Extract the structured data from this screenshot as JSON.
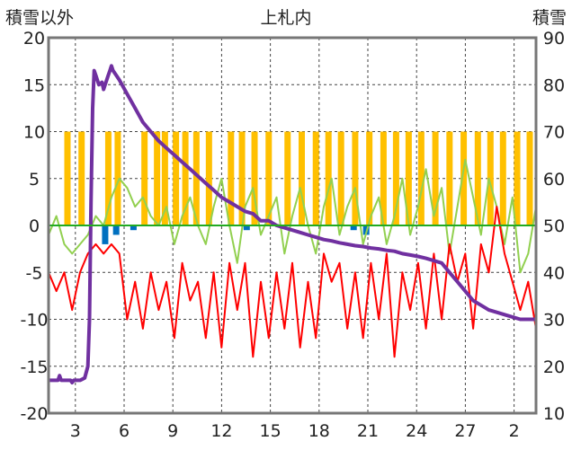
{
  "chart_data": {
    "type": "line",
    "title": "上札内",
    "ylabel_left": "積雪以外",
    "ylabel_right": "積雪",
    "x_tick_labels": [
      "3",
      "6",
      "9",
      "12",
      "15",
      "18",
      "21",
      "24",
      "27",
      "2"
    ],
    "y_left": {
      "range": [
        -20,
        20
      ],
      "ticks": [
        -20,
        -15,
        -10,
        -5,
        0,
        5,
        10,
        15,
        20
      ]
    },
    "y_right": {
      "range": [
        10,
        90
      ],
      "ticks": [
        10,
        20,
        30,
        40,
        50,
        60,
        70,
        80,
        90
      ]
    },
    "grid": true,
    "x_range": [
      0,
      31
    ],
    "colors": {
      "temp": "#ff0000",
      "humidity": "#92d050",
      "snow_depth": "#7030a0",
      "sun_bar": "#ffc000",
      "precip_bar": "#0070c0"
    },
    "series": [
      {
        "key": "snow_depth",
        "axis": "right",
        "points": [
          [
            0,
            17
          ],
          [
            0.6,
            17
          ],
          [
            0.7,
            18
          ],
          [
            0.8,
            17
          ],
          [
            1.4,
            17
          ],
          [
            1.5,
            16.5
          ],
          [
            1.6,
            17
          ],
          [
            2.0,
            17
          ],
          [
            2.3,
            17.5
          ],
          [
            2.5,
            20
          ],
          [
            2.6,
            30
          ],
          [
            2.7,
            55
          ],
          [
            2.8,
            75
          ],
          [
            2.9,
            83
          ],
          [
            3.0,
            82
          ],
          [
            3.1,
            81
          ],
          [
            3.2,
            80
          ],
          [
            3.4,
            80.5
          ],
          [
            3.5,
            79
          ],
          [
            3.6,
            80
          ],
          [
            3.8,
            82
          ],
          [
            3.9,
            83
          ],
          [
            4.0,
            84
          ],
          [
            4.1,
            83
          ],
          [
            4.3,
            82
          ],
          [
            4.5,
            81
          ],
          [
            5,
            78
          ],
          [
            5.5,
            75
          ],
          [
            6,
            72
          ],
          [
            6.5,
            70
          ],
          [
            7,
            68
          ],
          [
            7.5,
            66.5
          ],
          [
            8,
            65
          ],
          [
            8.5,
            63.5
          ],
          [
            9,
            62
          ],
          [
            9.5,
            60.5
          ],
          [
            10,
            59
          ],
          [
            10.5,
            57.5
          ],
          [
            11,
            56
          ],
          [
            11.5,
            55
          ],
          [
            12,
            54
          ],
          [
            12.5,
            53
          ],
          [
            13,
            52.5
          ],
          [
            13.5,
            51
          ],
          [
            14,
            51
          ],
          [
            14.5,
            50
          ],
          [
            15,
            49.5
          ],
          [
            15.5,
            49
          ],
          [
            16,
            48.5
          ],
          [
            16.5,
            48
          ],
          [
            17,
            47.5
          ],
          [
            17.5,
            47
          ],
          [
            18,
            46.7
          ],
          [
            18.5,
            46.3
          ],
          [
            19,
            46
          ],
          [
            19.5,
            45.7
          ],
          [
            20,
            45.5
          ],
          [
            20.5,
            45.2
          ],
          [
            21,
            45
          ],
          [
            21.5,
            44.7
          ],
          [
            22,
            44.5
          ],
          [
            22.5,
            44
          ],
          [
            23,
            43.7
          ],
          [
            23.5,
            43.4
          ],
          [
            24,
            43
          ],
          [
            24.5,
            42.5
          ],
          [
            25,
            42
          ],
          [
            25.5,
            40
          ],
          [
            26,
            38
          ],
          [
            26.5,
            36
          ],
          [
            27,
            34
          ],
          [
            27.5,
            33
          ],
          [
            28,
            32
          ],
          [
            28.5,
            31.5
          ],
          [
            29,
            31
          ],
          [
            29.5,
            30.5
          ],
          [
            30,
            30
          ],
          [
            30.5,
            30
          ],
          [
            31,
            30
          ]
        ]
      },
      {
        "key": "humidity",
        "axis": "left",
        "points": [
          [
            0,
            -1
          ],
          [
            0.5,
            1
          ],
          [
            1,
            -2
          ],
          [
            1.5,
            -3
          ],
          [
            2,
            -2
          ],
          [
            2.5,
            -1
          ],
          [
            3,
            1
          ],
          [
            3.5,
            0
          ],
          [
            4,
            3
          ],
          [
            4.5,
            5
          ],
          [
            5,
            4
          ],
          [
            5.5,
            2
          ],
          [
            6,
            3
          ],
          [
            6.5,
            1
          ],
          [
            7,
            0
          ],
          [
            7.5,
            2
          ],
          [
            8,
            -2
          ],
          [
            8.5,
            1
          ],
          [
            9,
            3
          ],
          [
            9.5,
            0
          ],
          [
            10,
            -2
          ],
          [
            10.5,
            2
          ],
          [
            11,
            5
          ],
          [
            11.5,
            0
          ],
          [
            12,
            -4
          ],
          [
            12.5,
            2
          ],
          [
            13,
            4
          ],
          [
            13.5,
            -1
          ],
          [
            14,
            1
          ],
          [
            14.5,
            3
          ],
          [
            15,
            -3
          ],
          [
            15.5,
            1
          ],
          [
            16,
            4
          ],
          [
            16.5,
            0
          ],
          [
            17,
            -3
          ],
          [
            17.5,
            2
          ],
          [
            18,
            5
          ],
          [
            18.5,
            -1
          ],
          [
            19,
            2
          ],
          [
            19.5,
            4
          ],
          [
            20,
            -2
          ],
          [
            20.5,
            1
          ],
          [
            21,
            3
          ],
          [
            21.5,
            -2
          ],
          [
            22,
            1
          ],
          [
            22.5,
            5
          ],
          [
            23,
            -1
          ],
          [
            23.5,
            2
          ],
          [
            24,
            6
          ],
          [
            24.5,
            1
          ],
          [
            25,
            4
          ],
          [
            25.5,
            -3
          ],
          [
            26,
            2
          ],
          [
            26.5,
            7
          ],
          [
            27,
            3
          ],
          [
            27.5,
            -1
          ],
          [
            28,
            5
          ],
          [
            28.5,
            2
          ],
          [
            29,
            -2
          ],
          [
            29.5,
            3
          ],
          [
            30,
            -5
          ],
          [
            30.5,
            -3
          ],
          [
            31,
            2
          ]
        ]
      },
      {
        "key": "temp",
        "axis": "left",
        "points": [
          [
            0,
            -5
          ],
          [
            0.5,
            -7
          ],
          [
            1,
            -5
          ],
          [
            1.5,
            -9
          ],
          [
            2,
            -5
          ],
          [
            2.5,
            -3
          ],
          [
            3,
            -2
          ],
          [
            3.5,
            -3
          ],
          [
            4,
            -2
          ],
          [
            4.5,
            -3
          ],
          [
            5,
            -10
          ],
          [
            5.5,
            -6
          ],
          [
            6,
            -11
          ],
          [
            6.5,
            -5
          ],
          [
            7,
            -9
          ],
          [
            7.5,
            -6
          ],
          [
            8,
            -12
          ],
          [
            8.5,
            -4
          ],
          [
            9,
            -8
          ],
          [
            9.5,
            -6
          ],
          [
            10,
            -12
          ],
          [
            10.5,
            -5
          ],
          [
            11,
            -13
          ],
          [
            11.5,
            -4
          ],
          [
            12,
            -9
          ],
          [
            12.5,
            -4
          ],
          [
            13,
            -14
          ],
          [
            13.5,
            -6
          ],
          [
            14,
            -12
          ],
          [
            14.5,
            -5
          ],
          [
            15,
            -11
          ],
          [
            15.5,
            -4
          ],
          [
            16,
            -13
          ],
          [
            16.5,
            -6
          ],
          [
            17,
            -12
          ],
          [
            17.5,
            -3
          ],
          [
            18,
            -6
          ],
          [
            18.5,
            -4
          ],
          [
            19,
            -11
          ],
          [
            19.5,
            -5
          ],
          [
            20,
            -12
          ],
          [
            20.5,
            -4
          ],
          [
            21,
            -10
          ],
          [
            21.5,
            -3
          ],
          [
            22,
            -14
          ],
          [
            22.5,
            -5
          ],
          [
            23,
            -9
          ],
          [
            23.5,
            -4
          ],
          [
            24,
            -11
          ],
          [
            24.5,
            -3
          ],
          [
            25,
            -10
          ],
          [
            25.5,
            -2
          ],
          [
            26,
            -6
          ],
          [
            26.5,
            -3
          ],
          [
            27,
            -11
          ],
          [
            27.5,
            -2
          ],
          [
            28,
            -5
          ],
          [
            28.5,
            2
          ],
          [
            29,
            -3
          ],
          [
            29.5,
            -6
          ],
          [
            30,
            -9
          ],
          [
            30.5,
            -6
          ],
          [
            31,
            -11
          ]
        ]
      }
    ],
    "sun_bars": [
      [
        1.2,
        10
      ],
      [
        2.1,
        10
      ],
      [
        3.8,
        10
      ],
      [
        4.4,
        10
      ],
      [
        6.1,
        10
      ],
      [
        6.9,
        10
      ],
      [
        7.4,
        10
      ],
      [
        8.1,
        10
      ],
      [
        8.7,
        10
      ],
      [
        9.4,
        10
      ],
      [
        10.2,
        10
      ],
      [
        11.6,
        10
      ],
      [
        12.3,
        10
      ],
      [
        13.1,
        10
      ],
      [
        14.0,
        10
      ],
      [
        15.2,
        10
      ],
      [
        16.1,
        10
      ],
      [
        17.0,
        10
      ],
      [
        17.8,
        10
      ],
      [
        18.6,
        10
      ],
      [
        19.5,
        10
      ],
      [
        20.4,
        10
      ],
      [
        21.3,
        10
      ],
      [
        22.1,
        10
      ],
      [
        22.9,
        10
      ],
      [
        23.7,
        10
      ],
      [
        24.6,
        10
      ],
      [
        25.5,
        10
      ],
      [
        26.4,
        10
      ],
      [
        27.3,
        10
      ],
      [
        28.1,
        10
      ],
      [
        28.9,
        10
      ],
      [
        29.8,
        10
      ],
      [
        30.6,
        10
      ]
    ],
    "precip_bars": [
      [
        3.6,
        -2
      ],
      [
        4.3,
        -1
      ],
      [
        5.4,
        -0.5
      ],
      [
        12.6,
        -0.5
      ],
      [
        19.4,
        -0.5
      ],
      [
        20.2,
        -1
      ]
    ]
  }
}
